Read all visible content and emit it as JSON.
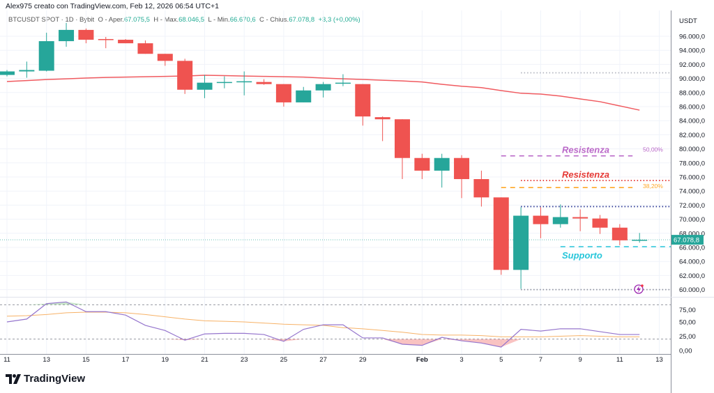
{
  "header": {
    "credit": "Alex975 creato con TradingView.com, Feb 12, 2026 06:54 UTC+1"
  },
  "legend": {
    "symbol": "BTCUSDT SPOT · 1D · Bybit",
    "open_label": "O - Aper.",
    "open": "67.075,5",
    "high_label": "H - Max.",
    "high": "68.046,5",
    "low_label": "L - Min.",
    "low": "66.670,6",
    "close_label": "C - Chius.",
    "close": "67.078,8",
    "change": "+3,3 (+0,00%)"
  },
  "brand": {
    "name": "TradingView"
  },
  "colors": {
    "up": "#26a69a",
    "down": "#ef5350",
    "ma": "#f05a5f",
    "osc": "#9575cd",
    "osc_ma": "#f7b267",
    "support": "#26c6da",
    "resist_purple": "#ba68c8",
    "resist_red": "#e53935",
    "fib_orange": "#ffa726",
    "blue_level": "#283593"
  },
  "chart_data": [
    {
      "type": "candlestick",
      "currency_label": "USDT",
      "ylim": [
        60000,
        96000
      ],
      "y_ticks": [
        "96.000,0",
        "94.000,0",
        "92.000,0",
        "90.000,0",
        "88.000,0",
        "86.000,0",
        "84.000,0",
        "82.000,0",
        "80.000,0",
        "78.000,0",
        "76.000,0",
        "74.000,0",
        "72.000,0",
        "70.000,0",
        "68.000,0",
        "66.000,0",
        "64.000,0",
        "62.000,0",
        "60.000,0"
      ],
      "y_tick_values": [
        96000,
        94000,
        92000,
        90000,
        88000,
        86000,
        84000,
        82000,
        80000,
        78000,
        76000,
        74000,
        72000,
        70000,
        68000,
        66000,
        64000,
        62000,
        60000
      ],
      "x_ticks": [
        {
          "label": "11",
          "day": 0
        },
        {
          "label": "13",
          "day": 2
        },
        {
          "label": "15",
          "day": 4
        },
        {
          "label": "17",
          "day": 6
        },
        {
          "label": "19",
          "day": 8
        },
        {
          "label": "21",
          "day": 10
        },
        {
          "label": "23",
          "day": 12
        },
        {
          "label": "25",
          "day": 14
        },
        {
          "label": "27",
          "day": 16
        },
        {
          "label": "29",
          "day": 18
        },
        {
          "label": "Feb",
          "day": 21
        },
        {
          "label": "3",
          "day": 23
        },
        {
          "label": "5",
          "day": 25
        },
        {
          "label": "7",
          "day": 27
        },
        {
          "label": "9",
          "day": 29
        },
        {
          "label": "11",
          "day": 31
        },
        {
          "label": "13",
          "day": 33
        }
      ],
      "columns": [
        "date",
        "open",
        "high",
        "low",
        "close"
      ],
      "candles": [
        [
          "Jan 11",
          90500,
          91200,
          90300,
          91000
        ],
        [
          "Jan 12",
          91000,
          92400,
          90100,
          91200
        ],
        [
          "Jan 13",
          91100,
          96500,
          91000,
          95300
        ],
        [
          "Jan 14",
          95300,
          97900,
          94500,
          96900
        ],
        [
          "Jan 15",
          96900,
          97100,
          95000,
          95500
        ],
        [
          "Jan 16",
          95600,
          95900,
          94300,
          95500
        ],
        [
          "Jan 17",
          95500,
          95600,
          95000,
          95000
        ],
        [
          "Jan 18",
          95000,
          95400,
          93500,
          93500
        ],
        [
          "Jan 19",
          93500,
          93500,
          91800,
          92500
        ],
        [
          "Jan 20",
          92500,
          92800,
          87800,
          88400
        ],
        [
          "Jan 21",
          88400,
          90500,
          87200,
          89400
        ],
        [
          "Jan 22",
          89400,
          90300,
          88600,
          89500
        ],
        [
          "Jan 23",
          89500,
          91000,
          87600,
          89600
        ],
        [
          "Jan 24",
          89500,
          89900,
          89100,
          89200
        ],
        [
          "Jan 25",
          89200,
          89200,
          86000,
          86600
        ],
        [
          "Jan 26",
          86600,
          88800,
          86600,
          88300
        ],
        [
          "Jan 27",
          88300,
          89500,
          87300,
          89200
        ],
        [
          "Jan 28",
          89300,
          90600,
          88900,
          89400
        ],
        [
          "Jan 29",
          89200,
          89200,
          83300,
          84600
        ],
        [
          "Jan 30",
          84500,
          84600,
          81100,
          84200
        ],
        [
          "Jan 31",
          84200,
          84200,
          75700,
          78700
        ],
        [
          "Feb 1",
          78700,
          79300,
          75700,
          76900
        ],
        [
          "Feb 2",
          76900,
          79300,
          74500,
          78700
        ],
        [
          "Feb 3",
          78700,
          79100,
          73000,
          75700
        ],
        [
          "Feb 4",
          75700,
          76900,
          71800,
          73100
        ],
        [
          "Feb 5",
          73100,
          73100,
          62100,
          62800
        ],
        [
          "Feb 6",
          62800,
          71700,
          60100,
          70500
        ],
        [
          "Feb 7",
          70500,
          71700,
          67300,
          69300
        ],
        [
          "Feb 8",
          69300,
          72100,
          68800,
          70300
        ],
        [
          "Feb 9",
          70300,
          71400,
          68300,
          70100
        ],
        [
          "Feb 10",
          70100,
          70600,
          67900,
          68800
        ],
        [
          "Feb 11",
          68800,
          69300,
          66300,
          67000
        ],
        [
          "Feb 12",
          67075.5,
          68046.5,
          66670.6,
          67078.8
        ]
      ],
      "moving_average": [
        89565,
        89700,
        89850,
        89950,
        90060,
        90150,
        90200,
        90250,
        90300,
        90350,
        90450,
        90400,
        90350,
        90300,
        90250,
        90200,
        90060,
        89950,
        89860,
        89750,
        89650,
        89500,
        89170,
        88900,
        88700,
        88280,
        87900,
        87780,
        87500,
        87090,
        86700,
        86100,
        85500
      ],
      "last_price_label": "67.078,8",
      "levels": [
        {
          "price": 90800,
          "style": "dotted",
          "color": "#b0b3bd",
          "from_day": 26,
          "label": ""
        },
        {
          "price": 79000,
          "style": "dashed",
          "color": "#ba68c8",
          "from_day": 25,
          "to_day": 32,
          "label": "Resistenza",
          "pct": "50,00%"
        },
        {
          "price": 75500,
          "style": "dotted",
          "color": "#e53935",
          "from_day": 26,
          "label": "Resistenza"
        },
        {
          "price": 74500,
          "style": "dashed",
          "color": "#ffa726",
          "from_day": 25,
          "to_day": 32,
          "label": "",
          "pct": "38,20%"
        },
        {
          "price": 71800,
          "style": "dotted",
          "color": "#283593",
          "from_day": 26,
          "label": ""
        },
        {
          "price": 66100,
          "style": "dashed",
          "color": "#26c6da",
          "from_day": 28,
          "label": "Supporto"
        },
        {
          "price": 60000,
          "style": "dotted",
          "color": "#8a8e99",
          "from_day": 26,
          "label": ""
        }
      ],
      "alert_icon": "lightning-alert-icon"
    },
    {
      "type": "line",
      "ylim": [
        0,
        100
      ],
      "y_ticks": [
        "75,00",
        "50,00",
        "25,00",
        "0,00"
      ],
      "y_tick_values": [
        75,
        50,
        25,
        0
      ],
      "bands": [
        80,
        20
      ],
      "series": [
        {
          "values": [
            50,
            55,
            82,
            85,
            68,
            68,
            62,
            44,
            35,
            18,
            29,
            30,
            30,
            28,
            16,
            37,
            45,
            45,
            22,
            22,
            11,
            9,
            23,
            17,
            13,
            6,
            37,
            34,
            38,
            38,
            33,
            28,
            28
          ]
        },
        {
          "values": [
            60,
            61,
            63,
            66,
            67,
            67,
            66,
            63,
            59,
            55,
            52,
            51,
            50,
            48,
            46,
            45,
            44,
            40,
            38,
            35,
            32,
            28,
            27,
            27,
            26,
            24,
            24,
            24,
            25,
            26,
            25,
            24,
            24
          ]
        }
      ]
    }
  ]
}
